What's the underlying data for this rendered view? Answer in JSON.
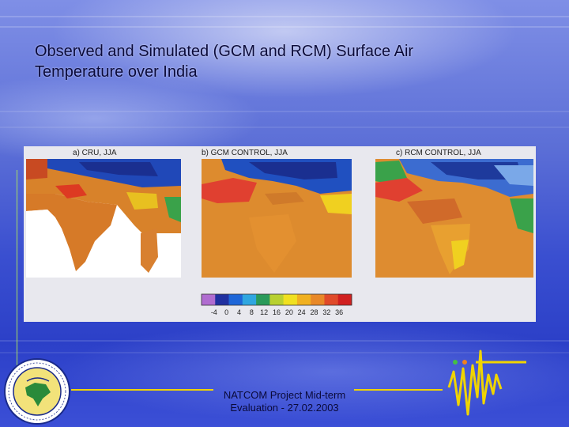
{
  "slide": {
    "title_line1": "Observed and Simulated (GCM and RCM) Surface Air",
    "title_line2": "Temperature over India",
    "footer_line1": "NATCOM Project Mid-term",
    "footer_line2": "Evaluation - 27.02.2003"
  },
  "figure": {
    "panels": [
      {
        "label": "a)  CRU,  JJA"
      },
      {
        "label": "b)  GCM  CONTROL,  JJA"
      },
      {
        "label": "c)  RCM  CONTROL,  JJA"
      }
    ],
    "colorbar": {
      "ticks": [
        "-4",
        "0",
        "4",
        "8",
        "12",
        "16",
        "20",
        "24",
        "28",
        "32",
        "36"
      ],
      "colors": [
        "#b06cd0",
        "#2030a0",
        "#1e66d8",
        "#2fa6e0",
        "#2a9a5a",
        "#b8d030",
        "#f0e020",
        "#f0b020",
        "#e88828",
        "#e04a2a",
        "#d02020"
      ]
    }
  },
  "logo": {
    "name": "natcom-emblem-icon"
  },
  "decoration": {
    "name": "seismograph-wave-icon"
  }
}
